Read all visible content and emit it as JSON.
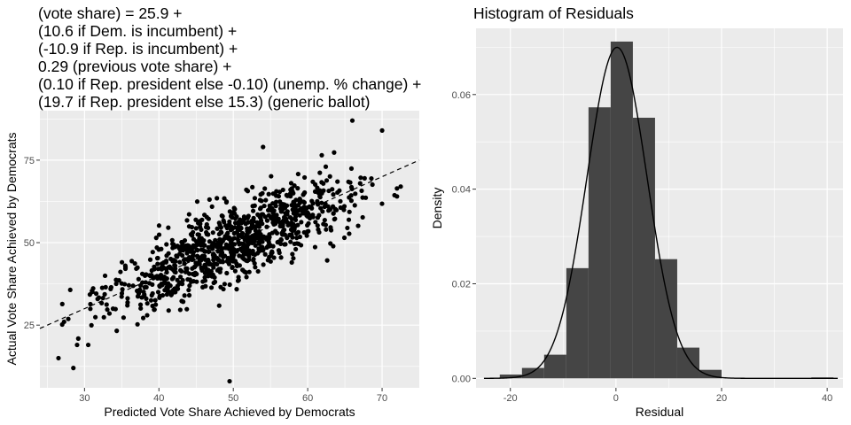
{
  "scatter": {
    "title_lines": [
      "(vote share) = 25.9 +",
      "(10.6 if Dem. is incumbent) +",
      "(-10.9 if Rep. is incumbent) +",
      "0.29 (previous vote share) +",
      "(0.10 if Rep. president else -0.10) (unemp. % change) +",
      "(19.7 if Rep. president else 15.3) (generic ballot)"
    ]
  },
  "histogram": {
    "title": "Histogram of Residuals"
  },
  "chart_data": [
    {
      "type": "scatter",
      "xlabel": "Predicted Vote Share Achieved by Democrats",
      "ylabel": "Actual Vote Share Achieved by Democrats",
      "xlim": [
        24,
        75
      ],
      "ylim": [
        6,
        90
      ],
      "x_ticks": [
        30,
        40,
        50,
        60,
        70
      ],
      "y_ticks": [
        25,
        50,
        75
      ],
      "grid": true,
      "reference_line": {
        "style": "dashed",
        "intercept": 0,
        "slope": 1
      },
      "n_points": 1000,
      "data_summary": {
        "residual_mean": 0,
        "residual_sd": 5.7,
        "x_range": [
          26,
          73
        ]
      },
      "outliers": [
        {
          "x": 26.5,
          "y": 15
        },
        {
          "x": 28.5,
          "y": 12
        },
        {
          "x": 49.5,
          "y": 8
        },
        {
          "x": 72.5,
          "y": 67
        },
        {
          "x": 66,
          "y": 87
        },
        {
          "x": 70,
          "y": 84
        },
        {
          "x": 54,
          "y": 79
        },
        {
          "x": 29,
          "y": 19
        },
        {
          "x": 30.5,
          "y": 19
        }
      ],
      "points": []
    },
    {
      "type": "bar",
      "subtype": "histogram",
      "title": "Histogram of Residuals",
      "xlabel": "Residual",
      "ylabel": "Density",
      "xlim": [
        -26.5,
        43
      ],
      "ylim": [
        -0.002,
        0.074
      ],
      "x_ticks": [
        -20,
        0,
        20,
        40
      ],
      "y_ticks": [
        0.0,
        0.02,
        0.04,
        0.06
      ],
      "y_tick_labels": [
        "0.00",
        "0.02",
        "0.04",
        "0.06"
      ],
      "x_tick_labels": [
        "-20",
        "0",
        "20",
        "40"
      ],
      "bin_width": 4.2,
      "bins": [
        {
          "x0": -22.0,
          "x1": -17.8,
          "density": 0.0008
        },
        {
          "x0": -17.8,
          "x1": -13.6,
          "density": 0.0022
        },
        {
          "x0": -13.6,
          "x1": -9.4,
          "density": 0.005
        },
        {
          "x0": -9.4,
          "x1": -5.2,
          "density": 0.0233
        },
        {
          "x0": -5.2,
          "x1": -1.0,
          "density": 0.0573
        },
        {
          "x0": -1.0,
          "x1": 3.2,
          "density": 0.0712
        },
        {
          "x0": 3.2,
          "x1": 7.4,
          "density": 0.0551
        },
        {
          "x0": 7.4,
          "x1": 11.6,
          "density": 0.0252
        },
        {
          "x0": 11.6,
          "x1": 15.8,
          "density": 0.0065
        },
        {
          "x0": 15.8,
          "x1": 20.0,
          "density": 0.0018
        },
        {
          "x0": 37.0,
          "x1": 41.2,
          "density": 0.0002
        }
      ],
      "density_curve": {
        "type": "normal",
        "mean": 0.2,
        "sd": 5.7,
        "x_range": [
          -25,
          42
        ]
      }
    }
  ]
}
